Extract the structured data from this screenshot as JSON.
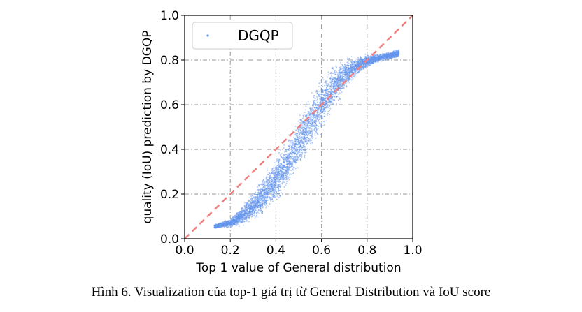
{
  "chart_data": {
    "type": "scatter",
    "xlabel": "Top 1 value of General distribution",
    "ylabel": "quality (IoU) prediction by DGQP",
    "xlim": [
      0.0,
      1.0
    ],
    "ylim": [
      0.0,
      1.0
    ],
    "xticks": [
      "0.0",
      "0.2",
      "0.4",
      "0.6",
      "0.8",
      "1.0"
    ],
    "yticks": [
      "0.0",
      "0.2",
      "0.4",
      "0.6",
      "0.8",
      "1.0"
    ],
    "grid": true,
    "legend_position": "top-left",
    "series": [
      {
        "name": "DGQP",
        "color": "#6495ED",
        "trend_x": [
          0.13,
          0.2,
          0.25,
          0.3,
          0.35,
          0.4,
          0.45,
          0.5,
          0.55,
          0.6,
          0.65,
          0.7,
          0.75,
          0.8,
          0.85,
          0.9,
          0.94
        ],
        "trend_y": [
          0.05,
          0.06,
          0.08,
          0.12,
          0.18,
          0.25,
          0.33,
          0.42,
          0.51,
          0.6,
          0.68,
          0.74,
          0.78,
          0.8,
          0.81,
          0.82,
          0.83
        ],
        "band_lower": [
          0.05,
          0.05,
          0.05,
          0.07,
          0.1,
          0.15,
          0.22,
          0.3,
          0.37,
          0.46,
          0.56,
          0.65,
          0.72,
          0.76,
          0.79,
          0.8,
          0.81
        ],
        "band_upper": [
          0.06,
          0.09,
          0.15,
          0.22,
          0.3,
          0.38,
          0.46,
          0.56,
          0.66,
          0.74,
          0.79,
          0.81,
          0.82,
          0.83,
          0.83,
          0.84,
          0.85
        ]
      }
    ],
    "reference_line": {
      "name": "y = x",
      "x": [
        0.0,
        1.0
      ],
      "y": [
        0.0,
        1.0
      ],
      "color": "#F08080",
      "style": "dashed"
    }
  },
  "caption": "Hình 6. Visualization của top-1 giá trị từ General Distribution và IoU score"
}
